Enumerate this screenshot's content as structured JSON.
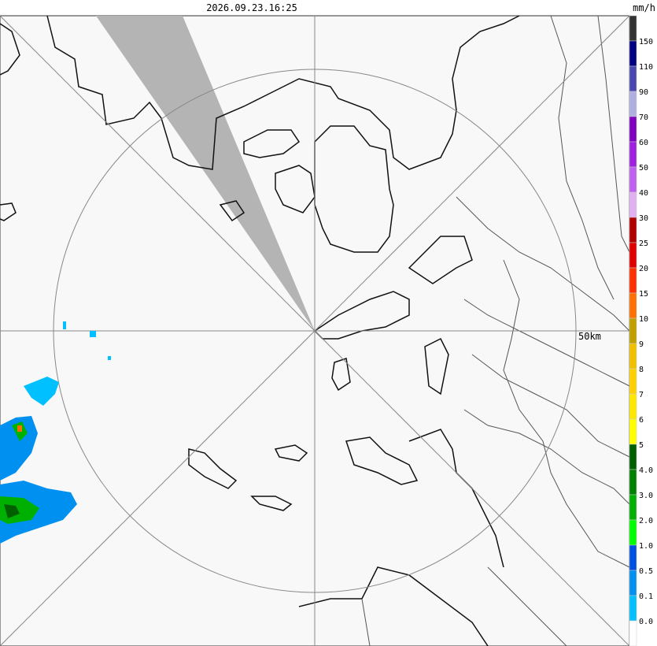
{
  "header": {
    "timestamp": "2026.09.23.16:25",
    "unit": "mm/h"
  },
  "range_label": "50km",
  "legend": {
    "colors": [
      "#333333",
      "#000080",
      "#4848b0",
      "#b0b0e0",
      "#8000c0",
      "#a020e0",
      "#c060f0",
      "#e0b0f0",
      "#b00000",
      "#e00000",
      "#ff3000",
      "#ff7000",
      "#c0a000",
      "#f0c000",
      "#ffd000",
      "#ffe800",
      "#ffff00",
      "#006000",
      "#008000",
      "#00b000",
      "#00ff00",
      "#0050e0",
      "#0090f0",
      "#00c0ff",
      "#ffffff"
    ],
    "labels": [
      "150",
      "110",
      "90",
      "70",
      "60",
      "50",
      "40",
      "30",
      "25",
      "20",
      "15",
      "10",
      "9",
      "8",
      "7",
      "6",
      "5",
      "4.0",
      "3.0",
      "2.0",
      "1.0",
      "0.5",
      "0.1",
      "0.0"
    ]
  }
}
